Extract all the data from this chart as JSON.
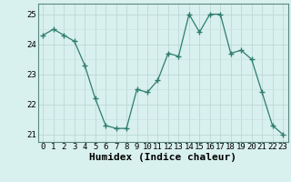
{
  "x": [
    0,
    1,
    2,
    3,
    4,
    5,
    6,
    7,
    8,
    9,
    10,
    11,
    12,
    13,
    14,
    15,
    16,
    17,
    18,
    19,
    20,
    21,
    22,
    23
  ],
  "y": [
    24.3,
    24.5,
    24.3,
    24.1,
    23.3,
    22.2,
    21.3,
    21.2,
    21.2,
    22.5,
    22.4,
    22.8,
    23.7,
    23.6,
    25.0,
    24.4,
    25.0,
    25.0,
    23.7,
    23.8,
    23.5,
    22.4,
    21.3,
    21.0
  ],
  "line_color": "#2e7d6e",
  "marker_color": "#2e7d6e",
  "bg_color": "#d8f0ee",
  "grid_color_major": "#b8d4d0",
  "grid_color_minor": "#cce4e0",
  "xlabel": "Humidex (Indice chaleur)",
  "ylim": [
    20.75,
    25.35
  ],
  "xlim": [
    -0.5,
    23.5
  ],
  "yticks": [
    21,
    22,
    23,
    24,
    25
  ],
  "xticks": [
    0,
    1,
    2,
    3,
    4,
    5,
    6,
    7,
    8,
    9,
    10,
    11,
    12,
    13,
    14,
    15,
    16,
    17,
    18,
    19,
    20,
    21,
    22,
    23
  ],
  "tick_fontsize": 6.5,
  "xlabel_fontsize": 8.0
}
